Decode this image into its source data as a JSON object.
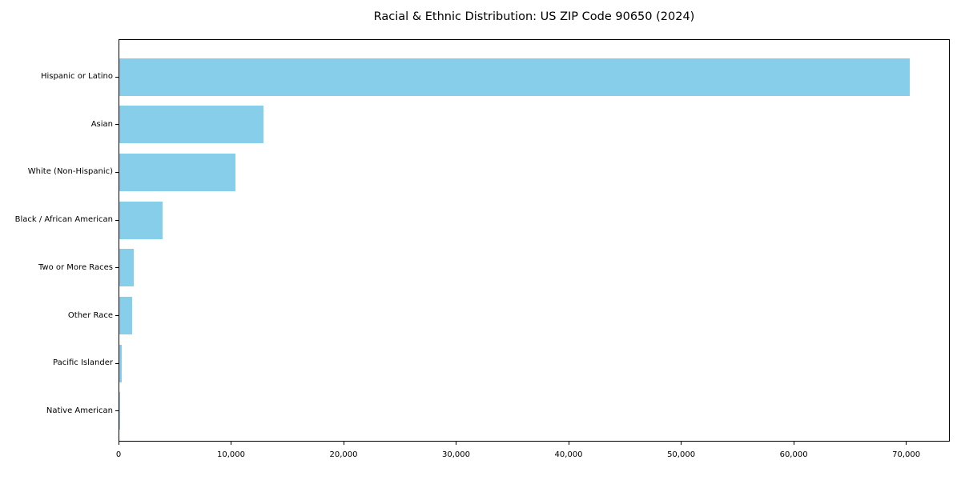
{
  "chart_data": {
    "type": "bar",
    "orientation": "horizontal",
    "title": "Racial & Ethnic Distribution: US ZIP Code 90650 (2024)",
    "categories": [
      "Hispanic or Latino",
      "Asian",
      "White (Non-Hispanic)",
      "Black / African American",
      "Two or More Races",
      "Other Race",
      "Pacific Islander",
      "Native American"
    ],
    "values": [
      70300,
      12850,
      10330,
      3820,
      1260,
      1140,
      210,
      90
    ],
    "xlabel": "",
    "ylabel": "",
    "xlim": [
      0,
      73800
    ],
    "x_ticks": [
      0,
      10000,
      20000,
      30000,
      40000,
      50000,
      60000,
      70000
    ],
    "x_tick_labels": [
      "0",
      "10,000",
      "20,000",
      "30,000",
      "40,000",
      "50,000",
      "60,000",
      "70,000"
    ],
    "grid": false,
    "legend": false,
    "colors": {
      "bar": "#87CEEB",
      "axis": "#000000",
      "text": "#000000",
      "background": "#FFFFFF"
    }
  }
}
